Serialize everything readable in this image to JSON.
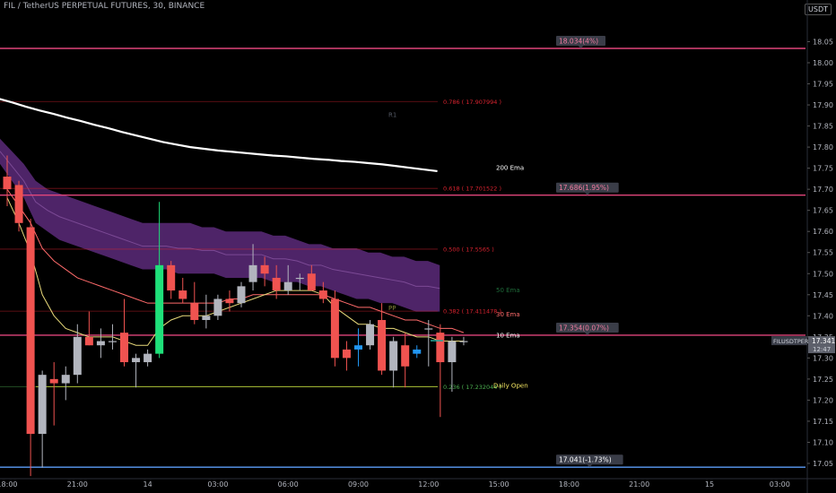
{
  "header": {
    "title": "FIL / TetherUS PERPETUAL FUTURES, 30, BINANCE",
    "currency": "USDT"
  },
  "chart_data": {
    "type": "candlestick",
    "ylim": [
      17.02,
      18.11
    ],
    "y_ticks": [
      17.05,
      17.1,
      17.15,
      17.2,
      17.25,
      17.3,
      17.35,
      17.4,
      17.45,
      17.5,
      17.55,
      17.6,
      17.65,
      17.7,
      17.75,
      17.8,
      17.85,
      17.9,
      17.95,
      18.0,
      18.05
    ],
    "x_ticks": [
      {
        "label": "18:00",
        "index": 0
      },
      {
        "label": "21:00",
        "index": 6
      },
      {
        "label": "14",
        "index": 12
      },
      {
        "label": "03:00",
        "index": 18
      },
      {
        "label": "06:00",
        "index": 24
      },
      {
        "label": "09:00",
        "index": 30
      },
      {
        "label": "12:00",
        "index": 36
      },
      {
        "label": "15:00",
        "index": 42
      },
      {
        "label": "18:00",
        "index": 48
      },
      {
        "label": "21:00",
        "index": 54
      },
      {
        "label": "15",
        "index": 60
      },
      {
        "label": "03:00",
        "index": 66
      }
    ],
    "candles": [
      {
        "o": 17.73,
        "h": 17.78,
        "l": 17.66,
        "c": 17.7
      },
      {
        "o": 17.71,
        "h": 17.72,
        "l": 17.6,
        "c": 17.62
      },
      {
        "o": 17.61,
        "h": 17.63,
        "l": 17.02,
        "c": 17.12
      },
      {
        "o": 17.12,
        "h": 17.27,
        "l": 17.04,
        "c": 17.26
      },
      {
        "o": 17.25,
        "h": 17.29,
        "l": 17.14,
        "c": 17.24
      },
      {
        "o": 17.24,
        "h": 17.28,
        "l": 17.2,
        "c": 17.26
      },
      {
        "o": 17.26,
        "h": 17.38,
        "l": 17.24,
        "c": 17.35
      },
      {
        "o": 17.35,
        "h": 17.41,
        "l": 17.33,
        "c": 17.33
      },
      {
        "o": 17.33,
        "h": 17.37,
        "l": 17.3,
        "c": 17.34
      },
      {
        "o": 17.34,
        "h": 17.38,
        "l": 17.32,
        "c": 17.34
      },
      {
        "o": 17.36,
        "h": 17.44,
        "l": 17.28,
        "c": 17.29
      },
      {
        "o": 17.29,
        "h": 17.31,
        "l": 17.23,
        "c": 17.3
      },
      {
        "o": 17.29,
        "h": 17.32,
        "l": 17.28,
        "c": 17.31
      },
      {
        "o": 17.31,
        "h": 17.67,
        "l": 17.3,
        "c": 17.52
      },
      {
        "o": 17.52,
        "h": 17.53,
        "l": 17.44,
        "c": 17.46
      },
      {
        "o": 17.46,
        "h": 17.49,
        "l": 17.43,
        "c": 17.44
      },
      {
        "o": 17.43,
        "h": 17.48,
        "l": 17.38,
        "c": 17.39
      },
      {
        "o": 17.39,
        "h": 17.45,
        "l": 17.37,
        "c": 17.4
      },
      {
        "o": 17.4,
        "h": 17.45,
        "l": 17.39,
        "c": 17.44
      },
      {
        "o": 17.44,
        "h": 17.46,
        "l": 17.41,
        "c": 17.43
      },
      {
        "o": 17.43,
        "h": 17.48,
        "l": 17.42,
        "c": 17.47
      },
      {
        "o": 17.48,
        "h": 17.57,
        "l": 17.46,
        "c": 17.52
      },
      {
        "o": 17.52,
        "h": 17.54,
        "l": 17.47,
        "c": 17.5
      },
      {
        "o": 17.49,
        "h": 17.52,
        "l": 17.44,
        "c": 17.46
      },
      {
        "o": 17.46,
        "h": 17.52,
        "l": 17.45,
        "c": 17.48
      },
      {
        "o": 17.49,
        "h": 17.5,
        "l": 17.46,
        "c": 17.49
      },
      {
        "o": 17.5,
        "h": 17.52,
        "l": 17.46,
        "c": 17.46
      },
      {
        "o": 17.46,
        "h": 17.48,
        "l": 17.43,
        "c": 17.44
      },
      {
        "o": 17.44,
        "h": 17.46,
        "l": 17.28,
        "c": 17.3
      },
      {
        "o": 17.32,
        "h": 17.34,
        "l": 17.27,
        "c": 17.3
      },
      {
        "o": 17.32,
        "h": 17.37,
        "l": 17.28,
        "c": 17.33
      },
      {
        "o": 17.33,
        "h": 17.39,
        "l": 17.32,
        "c": 17.38
      },
      {
        "o": 17.39,
        "h": 17.43,
        "l": 17.26,
        "c": 17.27
      },
      {
        "o": 17.27,
        "h": 17.35,
        "l": 17.23,
        "c": 17.34
      },
      {
        "o": 17.33,
        "h": 17.36,
        "l": 17.23,
        "c": 17.28
      },
      {
        "o": 17.32,
        "h": 17.33,
        "l": 17.3,
        "c": 17.31
      },
      {
        "o": 17.37,
        "h": 17.39,
        "l": 17.28,
        "c": 17.37
      },
      {
        "o": 17.36,
        "h": 17.38,
        "l": 17.16,
        "c": 17.29
      },
      {
        "o": 17.29,
        "h": 17.35,
        "l": 17.22,
        "c": 17.34
      },
      {
        "o": 17.34,
        "h": 17.35,
        "l": 17.33,
        "c": 17.34
      }
    ],
    "ema200": [
      17.915,
      17.906,
      17.896,
      17.887,
      17.879,
      17.87,
      17.862,
      17.853,
      17.845,
      17.836,
      17.828,
      17.82,
      17.812,
      17.806,
      17.8,
      17.796,
      17.792,
      17.789,
      17.786,
      17.783,
      17.78,
      17.778,
      17.775,
      17.772,
      17.77,
      17.767,
      17.765,
      17.762,
      17.759,
      17.755,
      17.751,
      17.747,
      17.743
    ],
    "ema30": [
      17.7,
      17.66,
      17.62,
      17.56,
      17.53,
      17.51,
      17.49,
      17.48,
      17.47,
      17.46,
      17.45,
      17.44,
      17.43,
      17.43,
      17.43,
      17.43,
      17.43,
      17.43,
      17.43,
      17.44,
      17.44,
      17.45,
      17.45,
      17.45,
      17.45,
      17.45,
      17.45,
      17.45,
      17.44,
      17.43,
      17.42,
      17.42,
      17.41,
      17.4,
      17.39,
      17.39,
      17.38,
      17.37,
      17.37,
      17.36
    ],
    "ema10": [
      17.68,
      17.62,
      17.55,
      17.45,
      17.4,
      17.37,
      17.36,
      17.35,
      17.35,
      17.35,
      17.34,
      17.33,
      17.33,
      17.37,
      17.39,
      17.4,
      17.4,
      17.4,
      17.41,
      17.42,
      17.43,
      17.44,
      17.45,
      17.46,
      17.46,
      17.46,
      17.46,
      17.45,
      17.42,
      17.4,
      17.38,
      17.38,
      17.37,
      17.37,
      17.36,
      17.35,
      17.35,
      17.34,
      17.34,
      17.34
    ],
    "ema_band_upper": [
      17.82,
      17.79,
      17.76,
      17.72,
      17.7,
      17.69,
      17.68,
      17.67,
      17.66,
      17.65,
      17.64,
      17.63,
      17.62,
      17.62,
      17.62,
      17.62,
      17.62,
      17.61,
      17.61,
      17.6,
      17.6,
      17.6,
      17.6,
      17.59,
      17.59,
      17.58,
      17.57,
      17.57,
      17.56,
      17.56,
      17.56,
      17.55,
      17.55,
      17.54,
      17.54,
      17.53,
      17.53,
      17.52
    ],
    "ema_band_lower": [
      17.76,
      17.72,
      17.68,
      17.62,
      17.6,
      17.58,
      17.57,
      17.56,
      17.55,
      17.54,
      17.53,
      17.52,
      17.51,
      17.51,
      17.51,
      17.5,
      17.5,
      17.5,
      17.5,
      17.49,
      17.49,
      17.49,
      17.49,
      17.48,
      17.48,
      17.48,
      17.47,
      17.47,
      17.46,
      17.45,
      17.44,
      17.44,
      17.43,
      17.43,
      17.42,
      17.41,
      17.41,
      17.41
    ],
    "horizontal_levels": [
      {
        "price": 18.034,
        "label": "18.034(4%)",
        "color": "#e0457b"
      },
      {
        "price": 17.686,
        "label": "17.686(1.95%)",
        "color": "#e0457b"
      },
      {
        "price": 17.354,
        "label": "17.354(0.07%)",
        "color": "#e0457b"
      },
      {
        "price": 17.041,
        "label": "17.041(-1.73%)",
        "color": "#5b9cf6"
      }
    ],
    "fib_levels": [
      {
        "price": 17.908,
        "label": "0.786 ( 17.907994 )",
        "color": "#d9232f"
      },
      {
        "price": 17.702,
        "label": "0.618 ( 17.701522 )",
        "color": "#d9232f"
      },
      {
        "price": 17.558,
        "label": "0.500 ( 17.5565 )",
        "color": "#d9232f"
      },
      {
        "price": 17.411,
        "label": "0.382 ( 17.411478 )",
        "color": "#d9232f"
      },
      {
        "price": 17.232,
        "label": "0.236 ( 17.232044 )",
        "color": "#4caf50"
      }
    ],
    "daily_open": 17.232,
    "annotations": [
      {
        "text": "200 Ema",
        "price": 17.752,
        "color": "#ffffff"
      },
      {
        "text": "50 Ema",
        "price": 17.462,
        "color": "#1f6b3a"
      },
      {
        "text": "30 Ema",
        "price": 17.405,
        "color": "#ff6b6b"
      },
      {
        "text": "10 Ema",
        "price": 17.355,
        "color": "#ffffff"
      },
      {
        "text": "Daily Open",
        "price": 17.236,
        "color": "#f5e663"
      },
      {
        "text": "R1",
        "price": 17.878,
        "color": "#555a66"
      },
      {
        "text": "PP",
        "price": 17.42,
        "color": "#8a8a3a"
      }
    ],
    "last_price": {
      "label": "FILUSDTPERP",
      "price": "17.341",
      "countdown": "12:47",
      "value": 17.341
    },
    "colors": {
      "up": "#b2b5be",
      "down": "#f05350",
      "up_strong": "#1fe07a",
      "blue": "#2196f3",
      "ema200": "#ffffff",
      "ema30": "#ff6b6b",
      "ema10": "#e8d97a",
      "band": "#5c2a7a"
    }
  }
}
